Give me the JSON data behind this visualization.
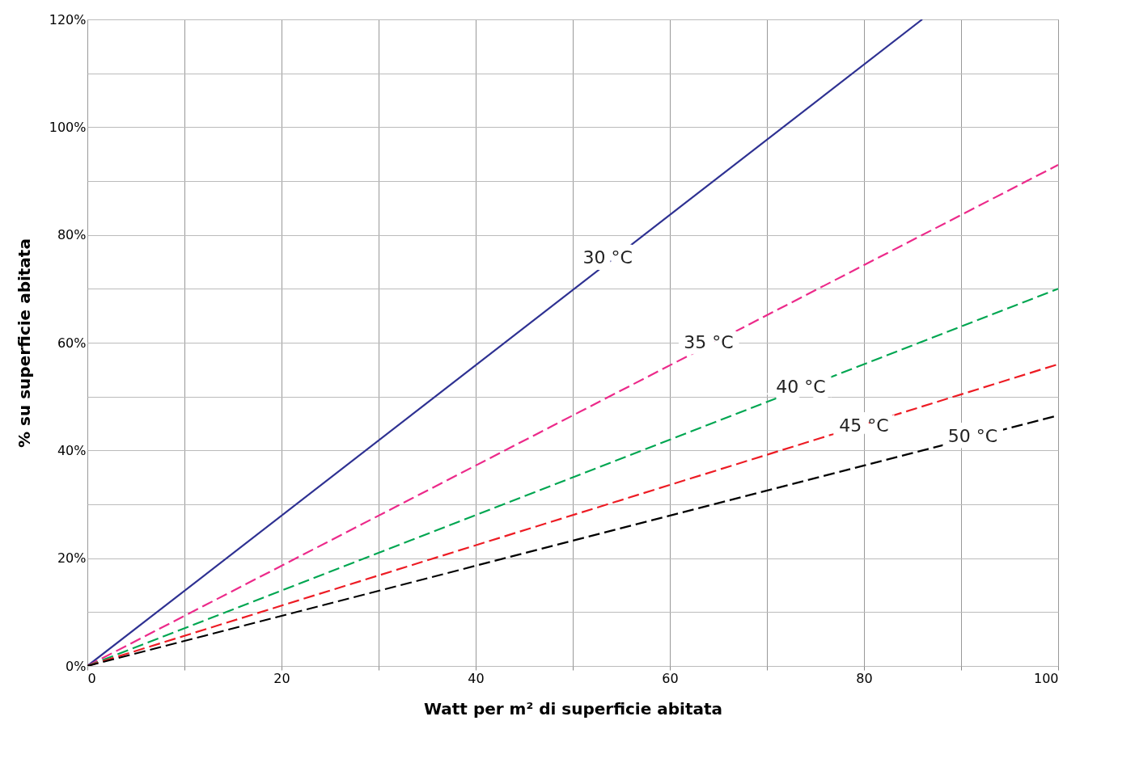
{
  "chart_data": {
    "type": "line",
    "xlabel": "Watt per m² di superficie abitata",
    "ylabel": "% su superficie abitata",
    "xlim": [
      0,
      100
    ],
    "ylim": [
      0,
      120
    ],
    "xticks": [
      0,
      {
        "value": 10,
        "label": null
      },
      20,
      {
        "value": 30,
        "label": null
      },
      40,
      {
        "value": 50,
        "label": null
      },
      60,
      {
        "value": 70,
        "label": null
      },
      80,
      {
        "value": 90,
        "label": null
      },
      100
    ],
    "yticks": [
      {
        "value": 0,
        "label": "0%"
      },
      {
        "value": 10,
        "label": null
      },
      {
        "value": 20,
        "label": "20%"
      },
      {
        "value": 30,
        "label": null
      },
      {
        "value": 40,
        "label": "40%"
      },
      {
        "value": 50,
        "label": null
      },
      {
        "value": 60,
        "label": "60%"
      },
      {
        "value": 70,
        "label": null
      },
      {
        "value": 80,
        "label": "80%"
      },
      {
        "value": 90,
        "label": null
      },
      {
        "value": 100,
        "label": "100%"
      },
      {
        "value": 110,
        "label": null
      },
      {
        "value": 120,
        "label": "120%"
      }
    ],
    "grid": true,
    "marker": "none",
    "series": [
      {
        "color": "#2e3192",
        "line_style": "solid",
        "x": [
          0,
          86
        ],
        "values": [
          0,
          120
        ]
      },
      {
        "color": "#ec2a8a",
        "line_style": "dashed",
        "x": [
          0,
          100
        ],
        "values": [
          0,
          93
        ]
      },
      {
        "color": "#00a651",
        "line_style": "dashed",
        "x": [
          0,
          100
        ],
        "values": [
          0,
          70
        ]
      },
      {
        "color": "#ed1c24",
        "line_style": "dashed",
        "x": [
          0,
          100
        ],
        "values": [
          0,
          56
        ]
      },
      {
        "color": "#000000",
        "line_style": "dashed",
        "x": [
          0,
          100
        ],
        "values": [
          0,
          46.5
        ]
      }
    ],
    "annotations": [
      {
        "text": "30 °C",
        "x": 53.6,
        "y": 75.8
      },
      {
        "text": "35 °C",
        "x": 64,
        "y": 60
      },
      {
        "text": "40 °C",
        "x": 73.5,
        "y": 51.8
      },
      {
        "text": "45 °C",
        "x": 80,
        "y": 44.5
      },
      {
        "text": "50 °C",
        "x": 91.2,
        "y": 42.6
      }
    ]
  }
}
